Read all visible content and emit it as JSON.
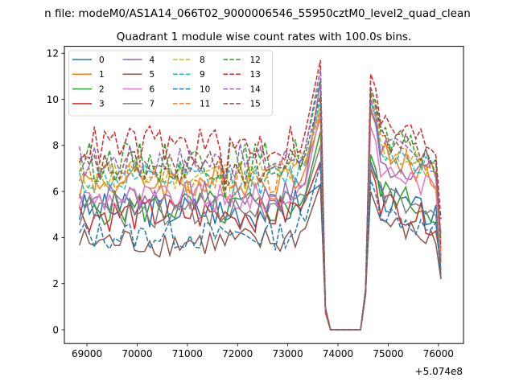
{
  "figure": {
    "suptitle": "n file: modeM0/AS1A14_066T02_9000006546_55950cztM0_level2_quad_clean"
  },
  "chart_data": {
    "type": "line",
    "title": "Quadrant 1 module wise count rates with 100.0s bins.",
    "xlabel": "",
    "ylabel": "",
    "x_offset_label": "+5.074e8",
    "xlim": [
      68550,
      76500
    ],
    "ylim": [
      -0.6,
      12.3
    ],
    "x_ticks": [
      69000,
      70000,
      71000,
      72000,
      73000,
      74000,
      75000,
      76000
    ],
    "x_tick_labels": [
      "69000",
      "70000",
      "71000",
      "72000",
      "73000",
      "74000",
      "75000",
      "76000"
    ],
    "y_ticks": [
      0,
      2,
      4,
      6,
      8,
      10,
      12
    ],
    "y_tick_labels": [
      "0",
      "2",
      "4",
      "6",
      "8",
      "10",
      "12"
    ],
    "grid": false,
    "legend_position": "upper-left",
    "x_start": 68850,
    "x_step": 100,
    "series": [
      {
        "name": "0",
        "color": "#1f77b4",
        "dash": "solid",
        "base": 5.2,
        "amp": 0.35
      },
      {
        "name": "1",
        "color": "#ff7f0e",
        "dash": "solid",
        "base": 6.4,
        "amp": 0.35
      },
      {
        "name": "2",
        "color": "#2ca02c",
        "dash": "solid",
        "base": 5.3,
        "amp": 0.35
      },
      {
        "name": "3",
        "color": "#d62728",
        "dash": "solid",
        "base": 5.0,
        "amp": 0.35
      },
      {
        "name": "4",
        "color": "#9467bd",
        "dash": "solid",
        "base": 5.8,
        "amp": 0.3
      },
      {
        "name": "5",
        "color": "#8c564b",
        "dash": "solid",
        "base": 3.8,
        "amp": 0.3
      },
      {
        "name": "6",
        "color": "#e377c2",
        "dash": "solid",
        "base": 5.7,
        "amp": 0.3
      },
      {
        "name": "7",
        "color": "#7f7f7f",
        "dash": "solid",
        "base": 5.2,
        "amp": 0.35
      },
      {
        "name": "8",
        "color": "#bcbd22",
        "dash": "dashed",
        "base": 6.7,
        "amp": 0.35
      },
      {
        "name": "9",
        "color": "#17becf",
        "dash": "dashed",
        "base": 6.5,
        "amp": 0.3
      },
      {
        "name": "10",
        "color": "#1f77b4",
        "dash": "dashed",
        "base": 4.1,
        "amp": 0.3
      },
      {
        "name": "11",
        "color": "#ff7f0e",
        "dash": "dashed",
        "base": 6.6,
        "amp": 0.35
      },
      {
        "name": "12",
        "color": "#2ca02c",
        "dash": "dashed",
        "base": 7.3,
        "amp": 0.4
      },
      {
        "name": "13",
        "color": "#d62728",
        "dash": "dashed",
        "base": 8.0,
        "amp": 0.4
      },
      {
        "name": "14",
        "color": "#9467bd",
        "dash": "dashed",
        "base": 7.3,
        "amp": 0.35
      },
      {
        "name": "15",
        "color": "#8c564b",
        "dash": "dashed",
        "base": 7.0,
        "amp": 0.35
      }
    ],
    "peaks": {
      "first_peak": {
        "x": 73650,
        "values": [
          6.3,
          9.2,
          8.6,
          7.3,
          10.8,
          6.3,
          9.5,
          8.0,
          9.8,
          10.0,
          7.2,
          9.6,
          10.9,
          11.7,
          11.3,
          10.2
        ]
      },
      "second_peak": {
        "x": 74650,
        "values": [
          7.3,
          9.5,
          7.6,
          7.0,
          9.6,
          6.0,
          8.8,
          7.2,
          9.8,
          9.9,
          6.5,
          10.2,
          10.3,
          11.1,
          10.0,
          10.5
        ]
      },
      "zero_range": [
        73850,
        74450
      ],
      "end_values": [
        2.2,
        3.0,
        2.6,
        2.9,
        3.2,
        2.2,
        3.3,
        2.6,
        3.9,
        3.5,
        2.4,
        3.4,
        4.1,
        4.8,
        4.1,
        3.6
      ]
    }
  }
}
